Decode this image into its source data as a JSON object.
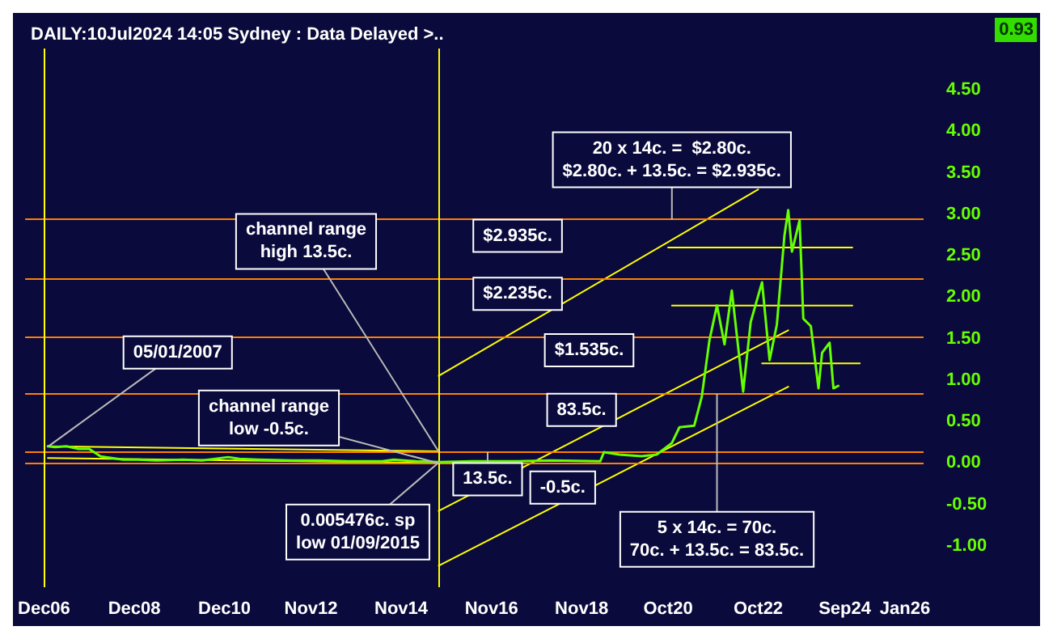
{
  "chart_data": {
    "type": "line",
    "title": "DAILY:10Jul2024 14:05 Sydney : Data Delayed >..",
    "xlim": [
      "2006-07",
      "2026-06"
    ],
    "xticks": [
      {
        "value": "2006-12",
        "label": "Dec06"
      },
      {
        "value": "2008-12",
        "label": "Dec08"
      },
      {
        "value": "2010-12",
        "label": "Dec10"
      },
      {
        "value": "2012-11",
        "label": "Nov12"
      },
      {
        "value": "2014-11",
        "label": "Nov14"
      },
      {
        "value": "2016-11",
        "label": "Nov16"
      },
      {
        "value": "2018-11",
        "label": "Nov18"
      },
      {
        "value": "2020-10",
        "label": "Oct20"
      },
      {
        "value": "2022-10",
        "label": "Oct22"
      },
      {
        "value": "2024-09",
        "label": "Sep24"
      },
      {
        "value": "2026-01",
        "label": "Jan26"
      }
    ],
    "ylim": [
      -1.5,
      5.0
    ],
    "yticks": [
      {
        "value": -1,
        "label": "-1.00"
      },
      {
        "value": -0.5,
        "label": "-0.50"
      },
      {
        "value": 0,
        "label": "0.00"
      },
      {
        "value": 0.5,
        "label": "0.50"
      },
      {
        "value": 1,
        "label": "1.00"
      },
      {
        "value": 1.5,
        "label": "1.50"
      },
      {
        "value": 2,
        "label": "2.00"
      },
      {
        "value": 2.5,
        "label": "2.50"
      },
      {
        "value": 3,
        "label": "3.00"
      },
      {
        "value": 3.5,
        "label": "3.50"
      },
      {
        "value": 4,
        "label": "4.00"
      },
      {
        "value": 4.5,
        "label": "4.50"
      }
    ],
    "grid": false,
    "marker": "none",
    "line_style": "solid",
    "series": [
      {
        "color": "#66ff00",
        "x": [
          "2007-01",
          "2007-03",
          "2007-06",
          "2007-09",
          "2007-12",
          "2008-03",
          "2008-06",
          "2008-09",
          "2009-01",
          "2009-06",
          "2010-01",
          "2010-06",
          "2011-01",
          "2011-04",
          "2011-09",
          "2012-06",
          "2013-01",
          "2013-09",
          "2014-06",
          "2014-09",
          "2015-03",
          "2015-09",
          "2016-06",
          "2017-06",
          "2018-03",
          "2019-04",
          "2019-05",
          "2019-09",
          "2020-03",
          "2020-07",
          "2020-11",
          "2021-01",
          "2021-05",
          "2021-07",
          "2021-09",
          "2021-11",
          "2022-01",
          "2022-03",
          "2022-06",
          "2022-08",
          "2022-11",
          "2023-01",
          "2023-03",
          "2023-05",
          "2023-06",
          "2023-07",
          "2023-09",
          "2023-10",
          "2023-12",
          "2024-02",
          "2024-03",
          "2024-05",
          "2024-06",
          "2024-07-10"
        ],
        "values": [
          0.2,
          0.19,
          0.2,
          0.17,
          0.17,
          0.08,
          0.06,
          0.04,
          0.04,
          0.03,
          0.04,
          0.03,
          0.07,
          0.05,
          0.04,
          0.03,
          0.03,
          0.02,
          0.02,
          0.04,
          0.02,
          0.01,
          0.02,
          0.02,
          0.03,
          0.02,
          0.13,
          0.1,
          0.08,
          0.1,
          0.24,
          0.43,
          0.45,
          0.8,
          1.48,
          1.9,
          1.43,
          2.08,
          0.86,
          1.7,
          2.18,
          1.24,
          1.67,
          2.74,
          3.05,
          2.55,
          2.93,
          1.74,
          1.65,
          0.9,
          1.33,
          1.45,
          0.9,
          0.93
        ]
      },
      {
        "type": "line",
        "color": "#ffff00",
        "x": [
          "2007-01",
          "2015-09"
        ],
        "values": [
          0.2,
          0.14
        ]
      },
      {
        "type": "line",
        "color": "#ffff00",
        "x": [
          "2007-01",
          "2015-09"
        ],
        "values": [
          0.06,
          0.0
        ]
      },
      {
        "type": "line",
        "color": "#ffff00",
        "x": [
          "2015-09",
          "2022-10"
        ],
        "values": [
          1.05,
          3.3
        ]
      },
      {
        "type": "line",
        "color": "#ffff00",
        "x": [
          "2015-09",
          "2023-06"
        ],
        "values": [
          -0.58,
          1.6
        ]
      },
      {
        "type": "line",
        "color": "#ffff00",
        "x": [
          "2015-09",
          "2023-06"
        ],
        "values": [
          -1.24,
          0.92
        ]
      },
      {
        "type": "line",
        "color": "#ffff00",
        "x": [
          "2020-10",
          "2024-11"
        ],
        "values": [
          2.6,
          2.6
        ]
      },
      {
        "type": "line",
        "color": "#ffff00",
        "x": [
          "2020-11",
          "2024-11"
        ],
        "values": [
          1.9,
          1.9
        ]
      },
      {
        "type": "line",
        "color": "#ffff00",
        "x": [
          "2022-11",
          "2025-01"
        ],
        "values": [
          1.2,
          1.2
        ]
      }
    ],
    "ref_lines": [
      {
        "axis": "y",
        "value": 2.935,
        "color": "#ff8000"
      },
      {
        "axis": "y",
        "value": 2.235,
        "color": "#ff8000"
      },
      {
        "axis": "y",
        "value": 1.535,
        "color": "#ff8000"
      },
      {
        "axis": "y",
        "value": 0.835,
        "color": "#ff8000"
      },
      {
        "axis": "y",
        "value": 0.135,
        "color": "#ff8000"
      },
      {
        "axis": "y",
        "value": -0.005,
        "color": "#ff8000"
      },
      {
        "axis": "x",
        "value": "2006-12",
        "color": "#ffff00"
      },
      {
        "axis": "x",
        "value": "2015-09",
        "color": "#ffff00"
      }
    ],
    "annotations": [
      {
        "text": "20 x 14c. =  $2.80c.\n$2.80c. + 13.5c. = $2.935c.",
        "x": "2020-11",
        "y": 2.935
      },
      {
        "text": "$2.935c.",
        "x": "2017-06",
        "y": 2.935
      },
      {
        "text": "$2.235c.",
        "x": "2017-06",
        "y": 2.235
      },
      {
        "text": "$1.535c.",
        "x": "2019-01",
        "y": 1.535
      },
      {
        "text": "83.5c.",
        "x": "2018-11",
        "y": 0.835
      },
      {
        "text": "13.5c.",
        "x": "2016-10",
        "y": 0.135
      },
      {
        "text": "-0.5c.",
        "x": "2018-06",
        "y": -0.005
      },
      {
        "text": "5 x 14c. = 70c.\n70c. + 13.5c. = 83.5c.",
        "x": "2021-11",
        "y": 0.835
      },
      {
        "text": "channel range\nhigh 13.5c.",
        "x": "2015-09",
        "y": 0.135
      },
      {
        "text": "channel range\nlow -0.5c.",
        "x": "2015-09",
        "y": -0.005
      },
      {
        "text": "05/01/2007",
        "x": "2007-01-05",
        "y": 0.2
      },
      {
        "text": "0.005476c. sp\nlow 01/09/2015",
        "x": "2015-09-01",
        "y": 0.005476
      },
      "0.93"
    ]
  }
}
